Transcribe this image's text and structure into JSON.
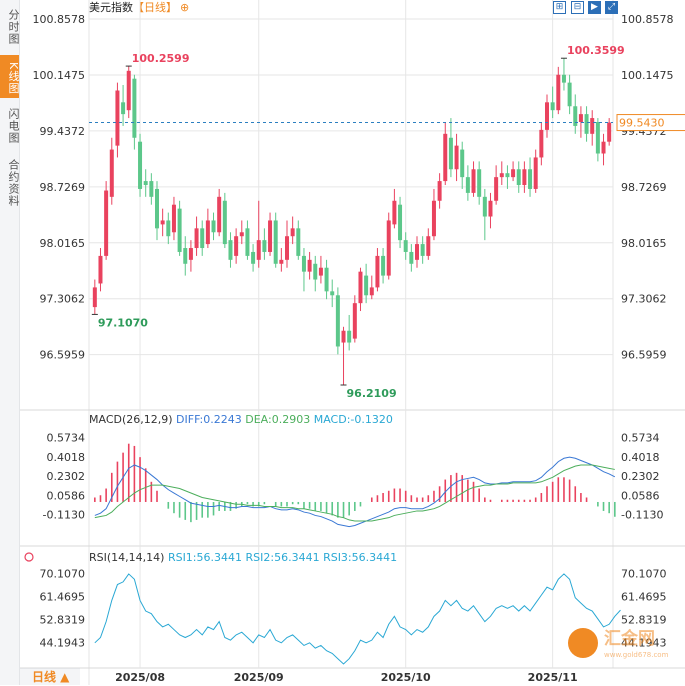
{
  "sidebar": {
    "tabs": [
      {
        "label": "分时图",
        "active": false
      },
      {
        "label": "K线图",
        "active": true
      },
      {
        "label": "闪电图",
        "active": false
      },
      {
        "label": "合约资料",
        "active": false
      }
    ]
  },
  "header": {
    "name": "美元指数",
    "period": "【日线】",
    "refresh_icon": "⊕"
  },
  "toolbar": {
    "buttons": [
      {
        "icon": "zoom-in-icon",
        "glyph": "⊞"
      },
      {
        "icon": "zoom-out-icon",
        "glyph": "⊟"
      },
      {
        "icon": "play-icon",
        "glyph": "▶"
      },
      {
        "icon": "fullscreen-icon",
        "glyph": "⤢"
      }
    ]
  },
  "colors": {
    "up": "#e9425e",
    "down": "#5cc78a",
    "accent": "#f08a24",
    "diff": "#3a78d4",
    "dea": "#4cae5c",
    "rsi": "#2aa8d4",
    "grid": "#e6e6e6",
    "dash": "#2c7fc0"
  },
  "chart_data": [
    {
      "type": "candlestick",
      "title": "美元指数【日线】",
      "ylim": [
        96.2109,
        100.8578
      ],
      "yticks": [
        "100.8578",
        "100.1475",
        "99.4372",
        "98.7269",
        "98.0165",
        "97.3062",
        "96.5959"
      ],
      "high_label": "100.3599",
      "high_label_left": "100.2599",
      "low_label": "96.2109",
      "low_label_left": "97.1070",
      "last_price": "99.5430",
      "last_value": 99.543,
      "x_labels": [
        "2025/08",
        "2025/09",
        "2025/10",
        "2025/11"
      ],
      "candles": [
        [
          97.2,
          97.45,
          97.55,
          97.107
        ],
        [
          97.5,
          97.85,
          97.95,
          97.4
        ],
        [
          97.85,
          98.68,
          98.8,
          97.8
        ],
        [
          98.6,
          99.2,
          99.35,
          98.5
        ],
        [
          99.25,
          99.95,
          100.05,
          99.1
        ],
        [
          99.8,
          99.65,
          100.02,
          99.5
        ],
        [
          99.7,
          100.2,
          100.2599,
          99.6
        ],
        [
          100.1,
          99.35,
          100.15,
          99.2
        ],
        [
          99.3,
          98.7,
          99.4,
          98.6
        ],
        [
          98.8,
          98.75,
          98.95,
          98.6
        ],
        [
          98.8,
          98.6,
          98.9,
          98.5
        ],
        [
          98.7,
          98.2,
          98.8,
          98.05
        ],
        [
          98.25,
          98.3,
          98.45,
          98.1
        ],
        [
          98.3,
          98.1,
          98.4,
          98.0
        ],
        [
          98.15,
          98.5,
          98.6,
          98.05
        ],
        [
          98.45,
          97.9,
          98.55,
          97.85
        ],
        [
          97.95,
          97.75,
          98.1,
          97.6
        ],
        [
          97.8,
          97.95,
          98.05,
          97.65
        ],
        [
          97.95,
          98.2,
          98.35,
          97.85
        ],
        [
          98.2,
          97.95,
          98.3,
          97.85
        ],
        [
          98.0,
          98.3,
          98.45,
          97.95
        ],
        [
          98.3,
          98.15,
          98.4,
          98.05
        ],
        [
          98.15,
          98.6,
          98.7,
          98.1
        ],
        [
          98.55,
          98.0,
          98.65,
          97.95
        ],
        [
          98.05,
          97.8,
          98.15,
          97.7
        ],
        [
          97.85,
          98.1,
          98.2,
          97.75
        ],
        [
          98.1,
          98.15,
          98.3,
          98.0
        ],
        [
          98.2,
          97.85,
          98.3,
          97.8
        ],
        [
          97.9,
          97.75,
          98.0,
          97.65
        ],
        [
          97.8,
          98.05,
          98.55,
          97.7
        ],
        [
          98.05,
          97.9,
          98.2,
          97.8
        ],
        [
          97.9,
          98.3,
          98.4,
          97.85
        ],
        [
          98.3,
          97.75,
          98.4,
          97.7
        ],
        [
          97.75,
          97.8,
          97.95,
          97.65
        ],
        [
          97.8,
          98.1,
          98.3,
          97.7
        ],
        [
          98.1,
          98.2,
          98.35,
          98.0
        ],
        [
          98.2,
          97.85,
          98.3,
          97.8
        ],
        [
          97.85,
          97.65,
          97.95,
          97.4
        ],
        [
          97.65,
          97.8,
          97.9,
          97.55
        ],
        [
          97.75,
          97.55,
          97.85,
          97.4
        ],
        [
          97.6,
          97.7,
          97.85,
          97.5
        ],
        [
          97.7,
          97.4,
          97.8,
          97.3
        ],
        [
          97.4,
          97.35,
          97.55,
          97.2
        ],
        [
          97.35,
          96.7,
          97.45,
          96.6
        ],
        [
          96.75,
          96.9,
          96.95,
          96.2109
        ],
        [
          96.9,
          96.75,
          97.1,
          96.65
        ],
        [
          96.8,
          97.25,
          97.35,
          96.75
        ],
        [
          97.25,
          97.65,
          97.7,
          97.15
        ],
        [
          97.6,
          97.35,
          97.75,
          97.25
        ],
        [
          97.35,
          97.45,
          97.6,
          97.3
        ],
        [
          97.45,
          97.85,
          97.95,
          97.4
        ],
        [
          97.85,
          97.6,
          97.95,
          97.5
        ],
        [
          97.6,
          98.3,
          98.4,
          97.55
        ],
        [
          98.25,
          98.55,
          98.7,
          98.2
        ],
        [
          98.5,
          98.05,
          98.6,
          97.95
        ],
        [
          98.05,
          97.9,
          98.15,
          97.8
        ],
        [
          97.9,
          97.75,
          98.0,
          97.65
        ],
        [
          97.8,
          98.0,
          98.1,
          97.7
        ],
        [
          98.0,
          97.85,
          98.1,
          97.75
        ],
        [
          97.85,
          98.1,
          98.2,
          97.8
        ],
        [
          98.1,
          98.55,
          98.7,
          98.05
        ],
        [
          98.55,
          98.8,
          98.9,
          98.45
        ],
        [
          98.8,
          99.4,
          99.55,
          98.75
        ],
        [
          99.35,
          98.95,
          99.6,
          98.85
        ],
        [
          98.95,
          99.25,
          99.4,
          98.8
        ],
        [
          99.2,
          98.85,
          99.3,
          98.7
        ],
        [
          98.85,
          98.65,
          99.0,
          98.55
        ],
        [
          98.65,
          98.95,
          99.05,
          98.6
        ],
        [
          98.95,
          98.6,
          99.05,
          98.5
        ],
        [
          98.6,
          98.35,
          98.7,
          98.05
        ],
        [
          98.35,
          98.55,
          98.65,
          98.2
        ],
        [
          98.55,
          98.85,
          99.0,
          98.5
        ],
        [
          98.85,
          98.9,
          99.05,
          98.75
        ],
        [
          98.9,
          98.85,
          99.0,
          98.7
        ],
        [
          98.85,
          98.95,
          99.05,
          98.8
        ],
        [
          98.95,
          98.75,
          99.05,
          98.65
        ],
        [
          98.75,
          98.95,
          99.05,
          98.65
        ],
        [
          98.95,
          98.7,
          99.1,
          98.6
        ],
        [
          98.7,
          99.1,
          99.2,
          98.65
        ],
        [
          99.1,
          99.45,
          99.55,
          99.0
        ],
        [
          99.45,
          99.8,
          99.9,
          99.35
        ],
        [
          99.8,
          99.7,
          100.0,
          99.6
        ],
        [
          99.7,
          100.15,
          100.25,
          99.65
        ],
        [
          100.15,
          100.05,
          100.3599,
          99.95
        ],
        [
          100.05,
          99.75,
          100.15,
          99.65
        ],
        [
          99.75,
          99.5,
          99.9,
          99.4
        ],
        [
          99.55,
          99.65,
          99.75,
          99.35
        ],
        [
          99.65,
          99.4,
          99.75,
          99.3
        ],
        [
          99.4,
          99.6,
          99.7,
          99.25
        ],
        [
          99.55,
          99.15,
          99.6,
          99.05
        ],
        [
          99.15,
          99.3,
          99.4,
          99.0
        ],
        [
          99.3,
          99.543,
          99.6,
          99.25
        ]
      ]
    },
    {
      "type": "line",
      "title": "MACD(26,12,9)",
      "legend": [
        {
          "label": "DIFF:0.2243"
        },
        {
          "label": "DEA:0.2903"
        },
        {
          "label": "MACD:-0.1320"
        }
      ],
      "ylim": [
        -0.25,
        0.66
      ],
      "yticks": [
        "0.5734",
        "0.4018",
        "0.2302",
        "0.0586",
        "-0.1130"
      ],
      "series": [
        {
          "name": "DIFF",
          "values": [
            -0.12,
            -0.1,
            -0.06,
            0.04,
            0.14,
            0.22,
            0.3,
            0.33,
            0.31,
            0.28,
            0.24,
            0.2,
            0.15,
            0.11,
            0.08,
            0.05,
            0.02,
            -0.01,
            -0.02,
            -0.03,
            -0.04,
            -0.04,
            -0.03,
            -0.04,
            -0.05,
            -0.05,
            -0.04,
            -0.04,
            -0.05,
            -0.05,
            -0.05,
            -0.04,
            -0.06,
            -0.07,
            -0.07,
            -0.06,
            -0.07,
            -0.09,
            -0.1,
            -0.12,
            -0.13,
            -0.15,
            -0.17,
            -0.2,
            -0.21,
            -0.22,
            -0.21,
            -0.19,
            -0.17,
            -0.15,
            -0.13,
            -0.11,
            -0.09,
            -0.06,
            -0.05,
            -0.05,
            -0.06,
            -0.06,
            -0.06,
            -0.04,
            -0.01,
            0.03,
            0.09,
            0.14,
            0.18,
            0.2,
            0.21,
            0.22,
            0.2,
            0.17,
            0.16,
            0.16,
            0.17,
            0.17,
            0.18,
            0.18,
            0.18,
            0.18,
            0.19,
            0.22,
            0.27,
            0.31,
            0.36,
            0.39,
            0.4,
            0.39,
            0.37,
            0.35,
            0.33,
            0.3,
            0.27,
            0.25,
            0.2243
          ]
        },
        {
          "name": "DEA",
          "values": [
            -0.14,
            -0.13,
            -0.12,
            -0.09,
            -0.04,
            0.0,
            0.04,
            0.08,
            0.11,
            0.13,
            0.15,
            0.15,
            0.15,
            0.14,
            0.13,
            0.12,
            0.1,
            0.08,
            0.06,
            0.04,
            0.03,
            0.02,
            0.01,
            0.0,
            -0.01,
            -0.02,
            -0.02,
            -0.03,
            -0.03,
            -0.03,
            -0.04,
            -0.04,
            -0.04,
            -0.05,
            -0.05,
            -0.05,
            -0.06,
            -0.06,
            -0.07,
            -0.08,
            -0.09,
            -0.1,
            -0.11,
            -0.13,
            -0.14,
            -0.16,
            -0.17,
            -0.17,
            -0.17,
            -0.17,
            -0.16,
            -0.15,
            -0.14,
            -0.12,
            -0.11,
            -0.1,
            -0.09,
            -0.08,
            -0.08,
            -0.07,
            -0.06,
            -0.04,
            -0.01,
            0.02,
            0.05,
            0.08,
            0.11,
            0.13,
            0.14,
            0.15,
            0.15,
            0.16,
            0.16,
            0.16,
            0.17,
            0.17,
            0.17,
            0.17,
            0.17,
            0.18,
            0.2,
            0.22,
            0.25,
            0.28,
            0.3,
            0.32,
            0.33,
            0.33,
            0.33,
            0.32,
            0.31,
            0.3,
            0.2903
          ]
        },
        {
          "name": "MACD",
          "type": "bar",
          "values": [
            0.04,
            0.06,
            0.12,
            0.26,
            0.36,
            0.44,
            0.52,
            0.5,
            0.4,
            0.3,
            0.18,
            0.1,
            0.0,
            -0.06,
            -0.1,
            -0.14,
            -0.16,
            -0.18,
            -0.16,
            -0.14,
            -0.14,
            -0.12,
            -0.08,
            -0.08,
            -0.08,
            -0.06,
            -0.04,
            -0.02,
            -0.04,
            -0.04,
            -0.02,
            0.0,
            -0.04,
            -0.04,
            -0.04,
            -0.02,
            -0.02,
            -0.06,
            -0.06,
            -0.08,
            -0.08,
            -0.1,
            -0.12,
            -0.14,
            -0.14,
            -0.12,
            -0.08,
            -0.04,
            0.0,
            0.04,
            0.06,
            0.08,
            0.1,
            0.12,
            0.12,
            0.1,
            0.06,
            0.04,
            0.04,
            0.06,
            0.1,
            0.14,
            0.2,
            0.24,
            0.26,
            0.24,
            0.2,
            0.18,
            0.12,
            0.04,
            0.02,
            0.0,
            0.02,
            0.02,
            0.02,
            0.02,
            0.02,
            0.02,
            0.04,
            0.08,
            0.14,
            0.18,
            0.22,
            0.22,
            0.2,
            0.14,
            0.08,
            0.04,
            0.0,
            -0.04,
            -0.08,
            -0.1,
            -0.132
          ]
        }
      ]
    },
    {
      "type": "line",
      "title": "RSI(14,14,14)",
      "legend": [
        {
          "label": "RSI1:56.3441"
        },
        {
          "label": "RSI2:56.3441"
        },
        {
          "label": "RSI3:56.3441"
        }
      ],
      "ylim": [
        36,
        73
      ],
      "yticks": [
        "70.1070",
        "61.4695",
        "52.8319",
        "44.1943"
      ],
      "series": [
        {
          "name": "RSI1",
          "values": [
            44,
            46,
            52,
            60,
            66,
            67,
            70,
            68,
            60,
            56,
            55,
            52,
            50,
            51,
            49,
            47,
            46,
            47,
            49,
            47,
            50,
            49,
            52,
            46,
            45,
            47,
            48,
            46,
            44,
            47,
            46,
            49,
            45,
            44,
            46,
            47,
            45,
            43,
            44,
            42,
            43,
            41,
            40,
            38,
            36,
            38,
            41,
            45,
            44,
            45,
            48,
            46,
            51,
            54,
            50,
            49,
            47,
            49,
            48,
            50,
            54,
            56,
            60,
            58,
            60,
            57,
            56,
            58,
            55,
            52,
            54,
            57,
            58,
            57,
            58,
            56,
            58,
            56,
            59,
            62,
            65,
            64,
            68,
            70,
            68,
            61,
            59,
            57,
            56,
            53,
            50,
            51,
            54,
            56.34
          ]
        }
      ]
    }
  ]
}
